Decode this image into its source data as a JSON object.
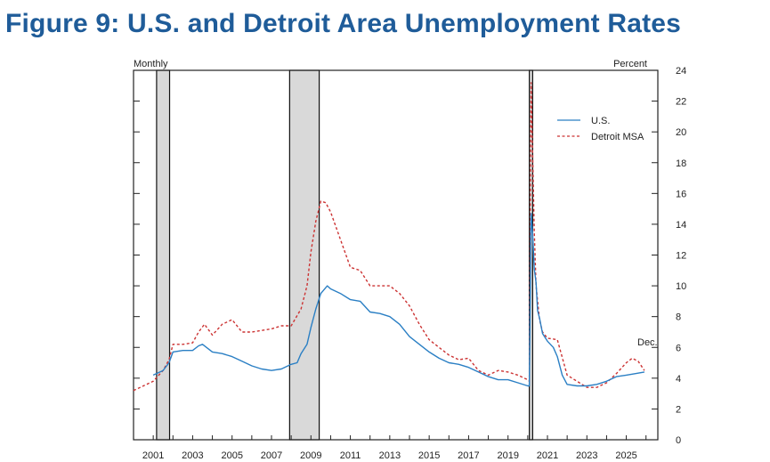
{
  "title": "Figure 9: U.S. and Detroit Area Unemployment Rates",
  "colors": {
    "title": "#1f5c99",
    "us": "#2a7fc4",
    "detroit": "#cc3333",
    "recession": "#d9d9d9"
  },
  "chart_data": {
    "type": "line",
    "title": "Figure 9: U.S. and Detroit Area Unemployment Rates",
    "frequency_label": "Monthly",
    "ylabel": "Percent",
    "annotation": "Dec.",
    "xlim": [
      2000.0,
      2026.6
    ],
    "ylim": [
      0,
      24
    ],
    "x_ticks": [
      "2001",
      "2003",
      "2005",
      "2007",
      "2009",
      "2011",
      "2013",
      "2015",
      "2017",
      "2019",
      "2021",
      "2023",
      "2025"
    ],
    "y_ticks": [
      "0",
      "2",
      "4",
      "6",
      "8",
      "10",
      "12",
      "14",
      "16",
      "18",
      "20",
      "22",
      "24"
    ],
    "legend": [
      {
        "name": "U.S.",
        "style": "solid",
        "color": "#2a7fc4"
      },
      {
        "name": "Detroit MSA",
        "style": "dashed",
        "color": "#cc3333"
      }
    ],
    "recessions": [
      [
        2001.17,
        2001.83
      ],
      [
        2007.92,
        2009.42
      ],
      [
        2020.08,
        2020.25
      ]
    ],
    "series": [
      {
        "name": "U.S.",
        "x": [
          2001.0,
          2001.17,
          2001.5,
          2001.8,
          2002.0,
          2002.5,
          2003.0,
          2003.3,
          2003.5,
          2004.0,
          2004.5,
          2005.0,
          2005.5,
          2006.0,
          2006.5,
          2007.0,
          2007.5,
          2008.0,
          2008.3,
          2008.5,
          2008.8,
          2009.0,
          2009.25,
          2009.5,
          2009.83,
          2010.0,
          2010.5,
          2011.0,
          2011.5,
          2012.0,
          2012.5,
          2013.0,
          2013.5,
          2014.0,
          2014.5,
          2015.0,
          2015.5,
          2016.0,
          2016.5,
          2017.0,
          2017.5,
          2018.0,
          2018.5,
          2019.0,
          2019.5,
          2020.0,
          2020.08,
          2020.17,
          2020.25,
          2020.33,
          2020.42,
          2020.5,
          2020.6,
          2020.75,
          2021.0,
          2021.3,
          2021.5,
          2021.75,
          2022.0,
          2022.5,
          2023.0,
          2023.5,
          2024.0,
          2024.5,
          2025.0,
          2025.5,
          2025.92
        ],
        "values": [
          4.2,
          4.3,
          4.5,
          5.0,
          5.7,
          5.8,
          5.8,
          6.1,
          6.2,
          5.7,
          5.6,
          5.4,
          5.1,
          4.8,
          4.6,
          4.5,
          4.6,
          4.9,
          5.0,
          5.6,
          6.2,
          7.3,
          8.5,
          9.5,
          10.0,
          9.8,
          9.5,
          9.1,
          9.0,
          8.3,
          8.2,
          8.0,
          7.5,
          6.7,
          6.2,
          5.7,
          5.3,
          5.0,
          4.9,
          4.7,
          4.4,
          4.1,
          3.9,
          3.9,
          3.7,
          3.5,
          3.5,
          14.7,
          13.3,
          11.1,
          10.2,
          8.4,
          7.9,
          6.9,
          6.4,
          6.0,
          5.4,
          4.2,
          3.6,
          3.5,
          3.5,
          3.6,
          3.8,
          4.1,
          4.2,
          4.3,
          4.4
        ]
      },
      {
        "name": "Detroit MSA",
        "x": [
          2000.0,
          2000.5,
          2001.0,
          2001.5,
          2001.8,
          2002.0,
          2002.5,
          2003.0,
          2003.3,
          2003.6,
          2004.0,
          2004.5,
          2005.0,
          2005.5,
          2006.0,
          2006.5,
          2007.0,
          2007.5,
          2008.0,
          2008.5,
          2008.8,
          2009.0,
          2009.25,
          2009.5,
          2009.75,
          2010.0,
          2010.5,
          2011.0,
          2011.5,
          2012.0,
          2012.5,
          2013.0,
          2013.5,
          2014.0,
          2014.5,
          2015.0,
          2015.5,
          2016.0,
          2016.5,
          2017.0,
          2017.5,
          2018.0,
          2018.5,
          2019.0,
          2019.5,
          2020.0,
          2020.08,
          2020.17,
          2020.25,
          2020.33,
          2020.42,
          2020.6,
          2020.75,
          2021.0,
          2021.5,
          2022.0,
          2022.5,
          2023.0,
          2023.5,
          2024.0,
          2024.5,
          2025.0,
          2025.3,
          2025.6,
          2025.92
        ],
        "values": [
          3.2,
          3.5,
          3.8,
          4.5,
          5.2,
          6.2,
          6.2,
          6.3,
          7.0,
          7.5,
          6.8,
          7.5,
          7.8,
          7.0,
          7.0,
          7.1,
          7.2,
          7.4,
          7.4,
          8.5,
          10.0,
          12.2,
          14.2,
          15.5,
          15.4,
          14.8,
          13.0,
          11.2,
          11.0,
          10.0,
          10.0,
          10.0,
          9.5,
          8.7,
          7.5,
          6.5,
          6.0,
          5.5,
          5.2,
          5.3,
          4.5,
          4.2,
          4.5,
          4.4,
          4.2,
          3.9,
          3.8,
          23.2,
          18.5,
          13.5,
          10.0,
          7.8,
          7.0,
          6.6,
          6.5,
          4.2,
          3.8,
          3.4,
          3.4,
          3.7,
          4.3,
          5.0,
          5.3,
          5.1,
          4.5
        ]
      }
    ]
  }
}
